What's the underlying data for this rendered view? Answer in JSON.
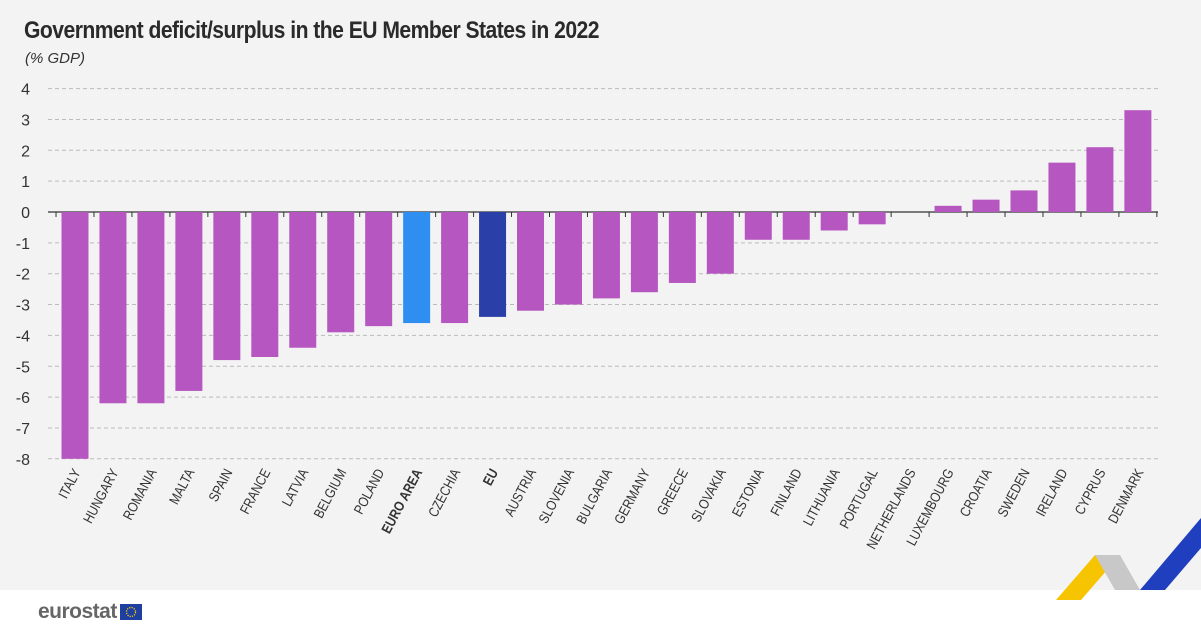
{
  "header": {
    "title": "Government deficit/surplus in the EU Member States in 2022",
    "subtitle": "(% GDP)"
  },
  "logo": {
    "text": "eurostat"
  },
  "colors": {
    "country": "#b656c0",
    "euro_area": "#2e8ff0",
    "eu": "#2a3fa8",
    "grid": "#bbbbbb",
    "axis": "#333333"
  },
  "chart_data": {
    "type": "bar",
    "title": "Government deficit/surplus in the EU Member States in 2022",
    "ylabel": "(% GDP)",
    "ylim": [
      -8,
      4
    ],
    "yticks": [
      4,
      3,
      2,
      1,
      0,
      -1,
      -2,
      -3,
      -4,
      -5,
      -6,
      -7,
      -8
    ],
    "grid": true,
    "categories": [
      "ITALY",
      "HUNGARY",
      "ROMANIA",
      "MALTA",
      "SPAIN",
      "FRANCE",
      "LATVIA",
      "BELGIUM",
      "POLAND",
      "EURO AREA",
      "CZECHIA",
      "EU",
      "AUSTRIA",
      "SLOVENIA",
      "BULGARIA",
      "GERMANY",
      "GREECE",
      "SLOVAKIA",
      "ESTONIA",
      "FINLAND",
      "LITHUANIA",
      "PORTUGAL",
      "NETHERLANDS",
      "LUXEMBOURG",
      "CROATIA",
      "SWEDEN",
      "IRELAND",
      "CYPRUS",
      "DENMARK"
    ],
    "values": [
      -8.0,
      -6.2,
      -6.2,
      -5.8,
      -4.8,
      -4.7,
      -4.4,
      -3.9,
      -3.7,
      -3.6,
      -3.6,
      -3.4,
      -3.2,
      -3.0,
      -2.8,
      -2.6,
      -2.3,
      -2.0,
      -0.9,
      -0.9,
      -0.6,
      -0.4,
      0.0,
      0.2,
      0.4,
      0.7,
      1.6,
      2.1,
      3.3
    ],
    "highlight": {
      "EURO AREA": "euro_area",
      "EU": "eu"
    }
  }
}
